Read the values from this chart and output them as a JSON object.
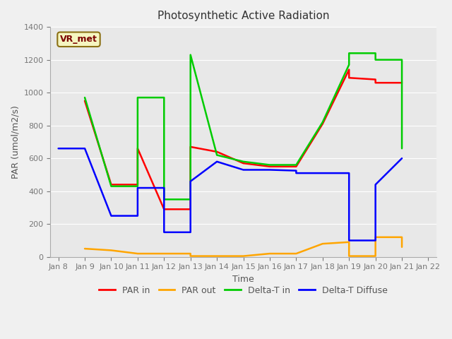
{
  "title": "Photosynthetic Active Radiation",
  "xlabel": "Time",
  "ylabel": "PAR (umol/m2/s)",
  "annotation": "VR_met",
  "ylim": [
    0,
    1400
  ],
  "x_labels": [
    "Jan 8",
    "Jan 9",
    "Jan 10",
    "Jan 11",
    "Jan 12",
    "Jan 13",
    "Jan 14",
    "Jan 15",
    "Jan 16",
    "Jan 17",
    "Jan 18",
    "Jan 19",
    "Jan 20",
    "Jan 21",
    "Jan 22"
  ],
  "x_values": [
    0,
    1,
    2,
    3,
    4,
    5,
    6,
    7,
    8,
    9,
    10,
    11,
    12,
    13,
    14
  ],
  "series": {
    "PAR in": {
      "color": "#ff0000",
      "x": [
        1,
        2,
        3,
        3,
        4,
        5,
        5,
        6,
        7,
        8,
        9,
        10,
        11,
        11,
        12,
        12,
        13
      ],
      "y": [
        950,
        440,
        440,
        660,
        290,
        290,
        670,
        640,
        570,
        550,
        550,
        810,
        1140,
        1090,
        1080,
        1060,
        1060
      ]
    },
    "PAR out": {
      "color": "#ffa500",
      "x": [
        1,
        2,
        3,
        4,
        5,
        5,
        6,
        7,
        8,
        9,
        10,
        11,
        11,
        12,
        12,
        13,
        13
      ],
      "y": [
        50,
        40,
        20,
        20,
        20,
        5,
        5,
        5,
        20,
        20,
        80,
        90,
        5,
        5,
        120,
        120,
        60
      ]
    },
    "Delta-T in": {
      "color": "#00cc00",
      "x": [
        1,
        2,
        3,
        3,
        4,
        4,
        5,
        5,
        6,
        7,
        8,
        9,
        10,
        11,
        11,
        12,
        12,
        13,
        13
      ],
      "y": [
        970,
        430,
        430,
        970,
        970,
        350,
        350,
        1230,
        620,
        580,
        560,
        560,
        820,
        1170,
        1240,
        1240,
        1200,
        1200,
        660
      ]
    },
    "Delta-T Diffuse": {
      "color": "#0000ff",
      "x": [
        0,
        1,
        2,
        2,
        3,
        3,
        4,
        4,
        5,
        5,
        6,
        7,
        8,
        9,
        9,
        10,
        11,
        11,
        12,
        12,
        13,
        13
      ],
      "y": [
        660,
        660,
        250,
        250,
        250,
        420,
        420,
        150,
        150,
        460,
        580,
        530,
        530,
        525,
        510,
        510,
        510,
        100,
        100,
        440,
        600,
        600
      ]
    }
  },
  "legend_labels": [
    "PAR in",
    "PAR out",
    "Delta-T in",
    "Delta-T Diffuse"
  ],
  "legend_colors": [
    "#ff0000",
    "#ffa500",
    "#00cc00",
    "#0000ff"
  ]
}
